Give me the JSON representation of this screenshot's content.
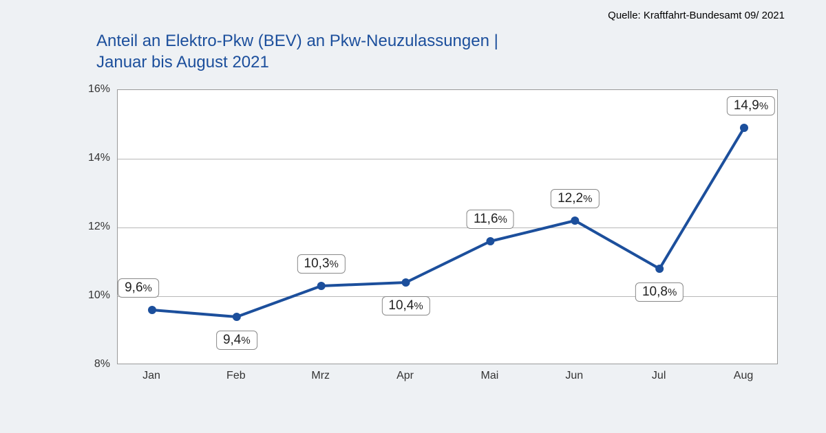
{
  "source_text": "Quelle: Kraftfahrt-Bundesamt 09/ 2021",
  "title_line1": "Anteil an Elektro-Pkw (BEV) an Pkw-Neuzulassungen |",
  "title_line2": "Januar bis August 2021",
  "chart": {
    "type": "line",
    "background_color": "#eef1f4",
    "plot_bg": "#ffffff",
    "grid_color": "#b8b8b8",
    "line_color": "#1c4f9c",
    "marker_color": "#1c4f9c",
    "line_width": 4,
    "marker_radius": 6,
    "title_color": "#1c4f9c",
    "y_min": 8,
    "y_max": 16,
    "y_ticks": [
      {
        "v": 8,
        "label": "8%"
      },
      {
        "v": 10,
        "label": "10%"
      },
      {
        "v": 12,
        "label": "12%"
      },
      {
        "v": 14,
        "label": "14%"
      },
      {
        "v": 16,
        "label": "16%"
      }
    ],
    "categories": [
      "Jan",
      "Feb",
      "Mrz",
      "Apr",
      "Mai",
      "Jun",
      "Jul",
      "Aug"
    ],
    "values": [
      9.6,
      9.4,
      10.3,
      10.4,
      11.6,
      12.2,
      10.8,
      14.9
    ],
    "value_labels": [
      "9,6",
      "9,4",
      "10,3",
      "10,4",
      "11,6",
      "12,2",
      "10,8",
      "14,9"
    ],
    "label_positions": [
      "above",
      "below",
      "above",
      "below",
      "above",
      "above",
      "below",
      "above"
    ]
  }
}
